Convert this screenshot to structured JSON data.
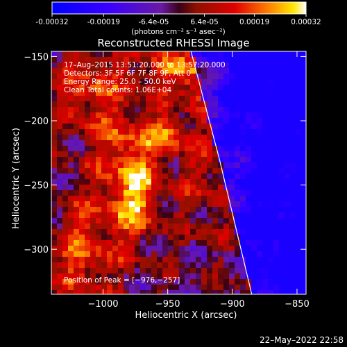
{
  "chart_data": {
    "type": "heatmap",
    "title": "Reconstructed RHESSI Image",
    "xlabel": "Heliocentric X (arcsec)",
    "ylabel": "Heliocentric Y (arcsec)",
    "xlim": [
      -1040,
      -843
    ],
    "ylim": [
      -335,
      -146
    ],
    "x_ticks": [
      -1000,
      -950,
      -900,
      -850
    ],
    "x_tick_labels": [
      "−1000",
      "−950",
      "−900",
      "−850"
    ],
    "y_ticks": [
      -150,
      -200,
      -250,
      -300
    ],
    "y_tick_labels": [
      "−150",
      "−200",
      "−250",
      "−300"
    ],
    "colorbar": {
      "range": [
        -0.00032,
        0.00032
      ],
      "ticks": [
        -0.00032,
        -0.00019,
        -6.4e-05,
        6.4e-05,
        0.00019,
        0.00032
      ],
      "tick_labels": [
        "-0.00032",
        "-0.00019",
        "-6.4e-05",
        "6.4e-05",
        "0.00019",
        "0.00032"
      ],
      "unit_label": "(photons cm⁻² s⁻¹ asec⁻²)",
      "colormap": [
        [
          0.0,
          "#0000ff"
        ],
        [
          0.22,
          "#3900ff"
        ],
        [
          0.43,
          "#6a1aa3"
        ],
        [
          0.5,
          "#3a0016"
        ],
        [
          0.57,
          "#8f1000"
        ],
        [
          0.72,
          "#e00000"
        ],
        [
          0.86,
          "#ff8800"
        ],
        [
          0.95,
          "#ffe700"
        ],
        [
          1.0,
          "#ffffff"
        ]
      ]
    },
    "info_lines": [
      "17–Aug–2015 13:51:20.000 to 13:57:20.000",
      "Detectors: 3F 5F 6F 7F 8F 9F, Att 0",
      "Energy Range: 25.0 – 50.0 keV",
      "Clean     Total counts: 1.06E+04"
    ],
    "peak_label": "Position of Peak = [−976,−257]",
    "peak_position": [
      -976,
      -257
    ],
    "limb": {
      "description": "solar limb line",
      "points": [
        [
          -932,
          -146
        ],
        [
          -910,
          -230
        ],
        [
          -885,
          -335
        ]
      ]
    },
    "colors": {
      "background": "#000000",
      "text": "#ffffff",
      "limb": "#ffffff"
    }
  },
  "footer": {
    "timestamp": "22–May–2022 22:58"
  }
}
